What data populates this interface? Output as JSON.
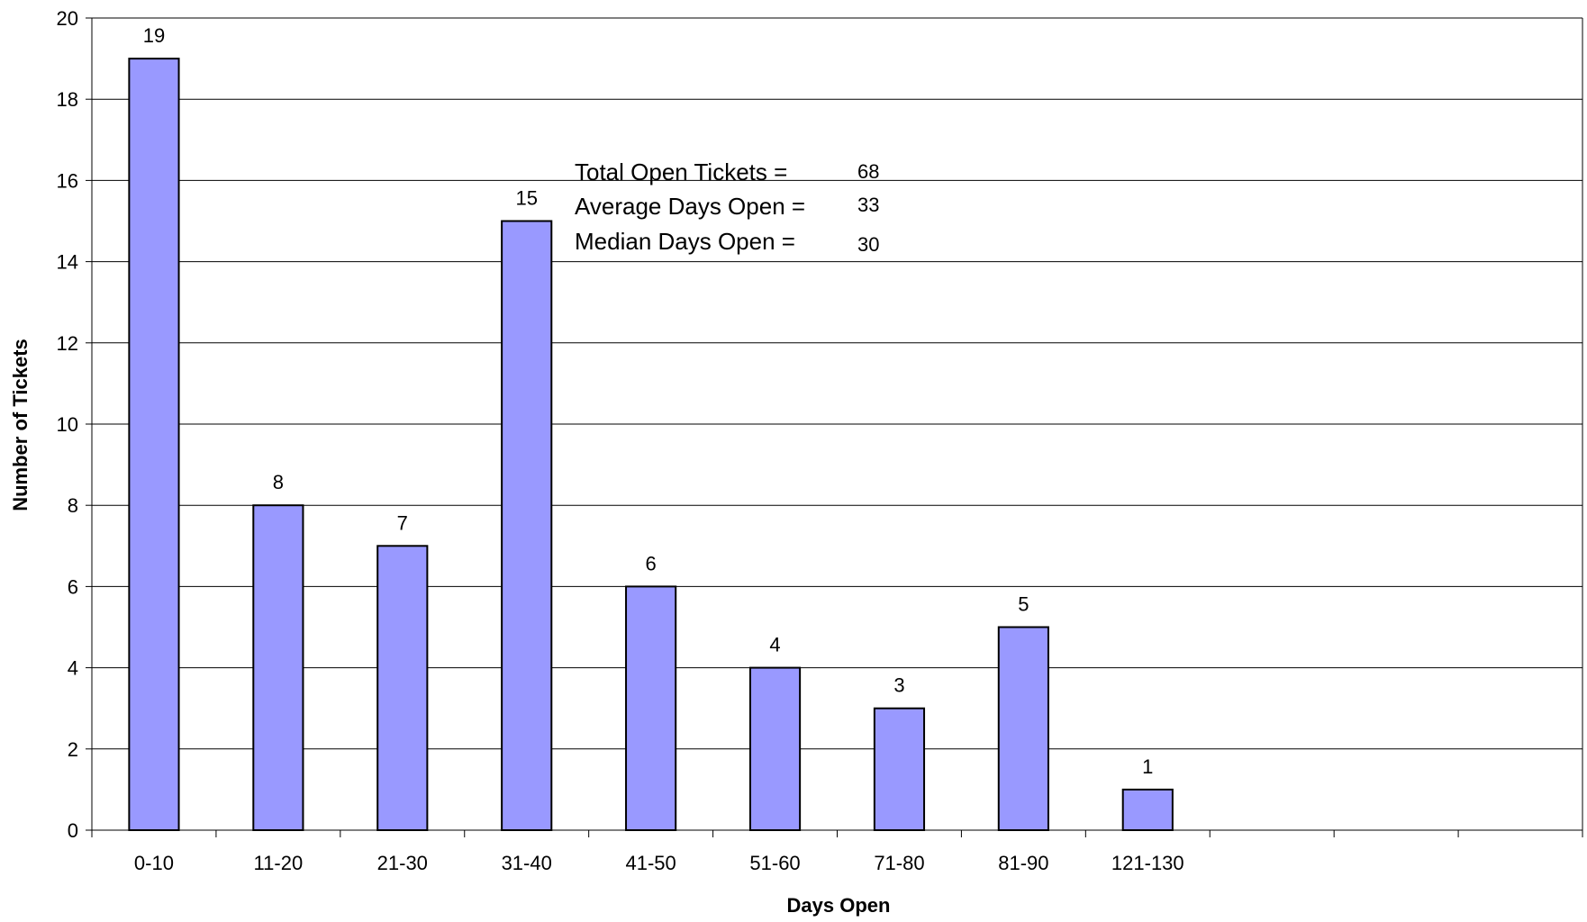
{
  "chart_data": {
    "type": "bar",
    "title": "",
    "xlabel": "Days Open",
    "ylabel": "Number of Tickets",
    "categories": [
      "0-10",
      "11-20",
      "21-30",
      "31-40",
      "41-50",
      "51-60",
      "71-80",
      "81-90",
      "121-130",
      "",
      "",
      ""
    ],
    "values": [
      19,
      8,
      7,
      15,
      6,
      4,
      3,
      5,
      1,
      null,
      null,
      null
    ],
    "ylim": [
      0,
      20
    ],
    "yticks": [
      0,
      2,
      4,
      6,
      8,
      10,
      12,
      14,
      16,
      18,
      20
    ],
    "grid": true,
    "bar_color": "#9999ff",
    "data_labels": true,
    "annotations": [
      {
        "label": "Total Open Tickets =",
        "value": "68"
      },
      {
        "label": "Average Days Open =",
        "value": "33"
      },
      {
        "label": "Median Days Open =",
        "value": "30"
      }
    ]
  }
}
